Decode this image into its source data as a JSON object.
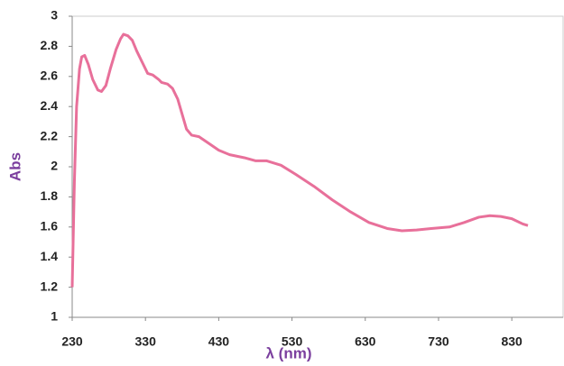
{
  "chart_data": {
    "type": "line",
    "x_label": "λ (nm)",
    "y_label": "Abs",
    "x": [
      230,
      233,
      236,
      240,
      243,
      247,
      252,
      258,
      265,
      270,
      276,
      282,
      290,
      296,
      300,
      306,
      312,
      318,
      325,
      333,
      340,
      348,
      352,
      360,
      367,
      374,
      380,
      386,
      393,
      403,
      415,
      430,
      445,
      465,
      480,
      495,
      515,
      535,
      560,
      585,
      610,
      635,
      660,
      680,
      700,
      720,
      745,
      765,
      785,
      800,
      815,
      830,
      845,
      852
    ],
    "series": [
      {
        "color": "#e8709a",
        "values": [
          1.2,
          1.9,
          2.4,
          2.65,
          2.73,
          2.74,
          2.68,
          2.58,
          2.51,
          2.5,
          2.54,
          2.65,
          2.78,
          2.85,
          2.88,
          2.87,
          2.84,
          2.77,
          2.7,
          2.62,
          2.61,
          2.58,
          2.56,
          2.55,
          2.52,
          2.45,
          2.35,
          2.25,
          2.21,
          2.2,
          2.16,
          2.11,
          2.08,
          2.06,
          2.04,
          2.04,
          2.01,
          1.95,
          1.87,
          1.78,
          1.7,
          1.63,
          1.59,
          1.575,
          1.58,
          1.59,
          1.6,
          1.63,
          1.665,
          1.675,
          1.67,
          1.655,
          1.62,
          1.61
        ]
      }
    ],
    "xlim": [
      230,
      900
    ],
    "ylim": [
      1,
      3
    ],
    "xticks": [
      230,
      330,
      430,
      530,
      630,
      730,
      830
    ],
    "yticks": [
      1,
      1.2,
      1.4,
      1.6,
      1.8,
      2,
      2.2,
      2.4,
      2.6,
      2.8,
      3
    ]
  }
}
